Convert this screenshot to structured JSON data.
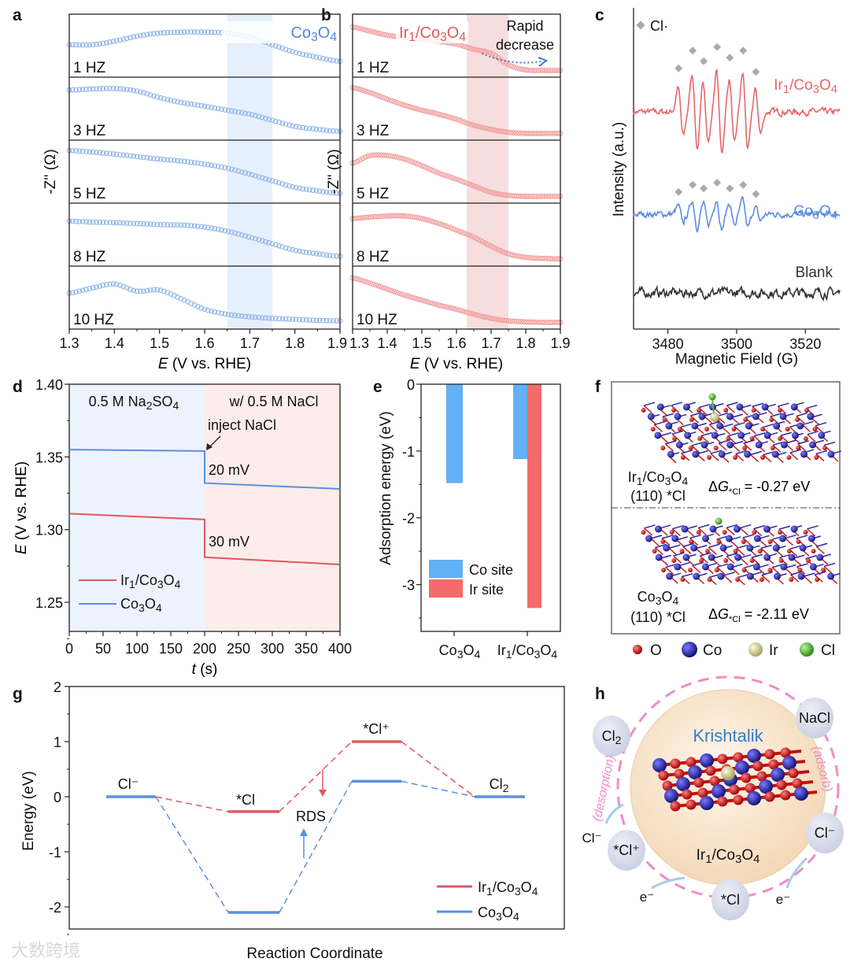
{
  "panel_labels": [
    "a",
    "b",
    "c",
    "d",
    "e",
    "f",
    "g",
    "h"
  ],
  "watermark": "大数跨境",
  "chart_data": [
    {
      "id": "a",
      "type": "line",
      "title": "Co3O4",
      "xlabel_italic": "E",
      "xlabel": "(V vs. RHE)",
      "ylabel": "-Z'' (Ω)",
      "xlim": [
        1.3,
        1.9
      ],
      "xticks": [
        "1.3",
        "1.4",
        "1.5",
        "1.6",
        "1.7",
        "1.8",
        "1.9"
      ],
      "highlight_range": [
        1.65,
        1.75
      ],
      "color": "#8fb4ea",
      "shade": "#e6f0fc",
      "x": [
        1.3,
        1.35,
        1.4,
        1.45,
        1.5,
        1.55,
        1.6,
        1.65,
        1.7,
        1.75,
        1.8,
        1.85,
        1.9
      ],
      "series": [
        {
          "name": "1 HZ",
          "values": [
            0.55,
            0.55,
            0.62,
            0.72,
            0.78,
            0.8,
            0.8,
            0.78,
            0.7,
            0.55,
            0.4,
            0.3,
            0.22
          ]
        },
        {
          "name": "3 HZ",
          "values": [
            0.9,
            0.92,
            0.93,
            0.88,
            0.75,
            0.65,
            0.58,
            0.5,
            0.42,
            0.3,
            0.18,
            0.12,
            0.08
          ]
        },
        {
          "name": "5 HZ",
          "values": [
            0.95,
            0.92,
            0.88,
            0.83,
            0.78,
            0.74,
            0.68,
            0.6,
            0.48,
            0.35,
            0.22,
            0.15,
            0.1
          ]
        },
        {
          "name": "8 HZ",
          "values": [
            0.8,
            0.78,
            0.77,
            0.75,
            0.73,
            0.72,
            0.68,
            0.6,
            0.48,
            0.35,
            0.22,
            0.15,
            0.1
          ]
        },
        {
          "name": "10 HZ",
          "values": [
            0.62,
            0.72,
            0.8,
            0.66,
            0.68,
            0.5,
            0.3,
            0.2,
            0.15,
            0.12,
            0.1,
            0.08,
            0.07
          ]
        }
      ]
    },
    {
      "id": "b",
      "type": "line",
      "title": "Ir1/Co3O4",
      "xlabel_italic": "E",
      "xlabel": "(V vs. RHE)",
      "ylabel": "-Z'' (Ω)",
      "xlim": [
        1.3,
        1.9
      ],
      "xticks": [
        "1.3",
        "1.4",
        "1.5",
        "1.6",
        "1.7",
        "1.8",
        "1.9"
      ],
      "highlight_range": [
        1.63,
        1.75
      ],
      "color": "#ef9a9a",
      "shade": "#f6dede",
      "annotation": [
        "Rapid",
        "decrease"
      ],
      "x": [
        1.3,
        1.35,
        1.4,
        1.45,
        1.5,
        1.55,
        1.6,
        1.65,
        1.7,
        1.75,
        1.8,
        1.85,
        1.9
      ],
      "series": [
        {
          "name": "1 HZ",
          "values": [
            0.9,
            0.82,
            0.74,
            0.69,
            0.66,
            0.62,
            0.56,
            0.46,
            0.38,
            0.15,
            0.05,
            0.04,
            0.04
          ]
        },
        {
          "name": "3 HZ",
          "values": [
            0.95,
            0.85,
            0.72,
            0.6,
            0.5,
            0.42,
            0.32,
            0.2,
            0.12,
            0.06,
            0.04,
            0.04,
            0.04
          ]
        },
        {
          "name": "5 HZ",
          "values": [
            0.7,
            0.85,
            0.85,
            0.78,
            0.65,
            0.5,
            0.38,
            0.25,
            0.12,
            0.06,
            0.04,
            0.04,
            0.04
          ]
        },
        {
          "name": "8 HZ",
          "values": [
            0.85,
            0.88,
            0.9,
            0.9,
            0.85,
            0.75,
            0.62,
            0.48,
            0.3,
            0.15,
            0.08,
            0.06,
            0.05
          ]
        },
        {
          "name": "10 HZ",
          "values": [
            0.92,
            0.82,
            0.7,
            0.58,
            0.48,
            0.38,
            0.3,
            0.2,
            0.12,
            0.07,
            0.05,
            0.04,
            0.04
          ]
        }
      ]
    },
    {
      "id": "c",
      "type": "line",
      "xlabel": "Magnetic Field (G)",
      "ylabel": "Intensity (a.u.)",
      "xlim": [
        3470,
        3530
      ],
      "xticks": [
        "3480",
        "3500",
        "3520"
      ],
      "legend": "Cl·",
      "peaks_G": [
        3483.7,
        3487.8,
        3491.0,
        3494.9,
        3498.6,
        3502.5,
        3506.2
      ],
      "series": [
        {
          "name": "Ir1/Co3O4",
          "color": "#e8676a",
          "rel_amplitudes": [
            45,
            70,
            55,
            75,
            60,
            70,
            40
          ]
        },
        {
          "name": "Co3O4",
          "color": "#5b8fe0",
          "rel_amplitudes": [
            15,
            25,
            20,
            28,
            20,
            25,
            12
          ]
        },
        {
          "name": "Blank",
          "color": "#333333",
          "rel_amplitudes": [
            0,
            0,
            0,
            0,
            0,
            0,
            0
          ]
        }
      ]
    },
    {
      "id": "d",
      "type": "line",
      "xlabel_italic": "t",
      "xlabel": "(s)",
      "ylabel_italic": "E",
      "ylabel": "(V vs. RHE)",
      "xlim": [
        0,
        400
      ],
      "ylim": [
        1.23,
        1.4
      ],
      "xticks": [
        "0",
        "50",
        "100",
        "150",
        "200",
        "250",
        "300",
        "350",
        "400"
      ],
      "yticks": [
        "1.25",
        "1.30",
        "1.35",
        "1.40"
      ],
      "regions": [
        "0.5 M Na2SO4",
        "w/ 0.5 M NaCl"
      ],
      "annotations": {
        "inject": "inject NaCl",
        "co_drop": "20 mV",
        "ir_drop": "30 mV"
      },
      "series": [
        {
          "name": "Ir1/Co3O4",
          "color": "#e0585f",
          "segments": [
            [
              [
                0,
                1.311
              ],
              [
                200,
                1.307
              ]
            ],
            [
              [
                200,
                1.281
              ],
              [
                400,
                1.276
              ]
            ]
          ]
        },
        {
          "name": "Co3O4",
          "color": "#5b8fe0",
          "segments": [
            [
              [
                0,
                1.355
              ],
              [
                200,
                1.354
              ]
            ],
            [
              [
                200,
                1.332
              ],
              [
                400,
                1.328
              ]
            ]
          ]
        }
      ]
    },
    {
      "id": "e",
      "type": "bar",
      "ylabel": "Adsorption energy (eV)",
      "ylim": [
        -3.7,
        0
      ],
      "yticks": [
        "0",
        "-1",
        "-2",
        "-3"
      ],
      "categories": [
        "Co3O4",
        "Ir1/Co3O4"
      ],
      "series": [
        {
          "name": "Co site",
          "color": "#62b0f5",
          "values": [
            -1.48,
            -1.12
          ]
        },
        {
          "name": "Ir site",
          "color": "#f56a6a",
          "values": [
            null,
            -3.35
          ]
        }
      ]
    },
    {
      "id": "g",
      "type": "line",
      "xlabel": "Reaction Coordinate",
      "ylabel": "Energy (eV)",
      "ylim": [
        -2.4,
        2
      ],
      "yticks": [
        "2",
        "1",
        "0",
        "-1",
        "-2"
      ],
      "states": [
        "Cl⁻",
        "*Cl",
        "*Cl⁺",
        "Cl2"
      ],
      "rds_label": "RDS",
      "series": [
        {
          "name": "Ir1/Co3O4",
          "color": "#e0585f",
          "values": [
            0,
            -0.27,
            1.0,
            0
          ]
        },
        {
          "name": "Co3O4",
          "color": "#5b8fe0",
          "values": [
            0,
            -2.1,
            0.28,
            0
          ]
        }
      ]
    }
  ],
  "panel_f": {
    "top": {
      "name": "Ir1/Co3O4",
      "facet": "(110) *Cl",
      "dg_symbol": "ΔG",
      "dg_sub": "*Cl",
      "dg_value": "= -0.27 eV"
    },
    "bottom": {
      "name": "Co3O4",
      "facet": "(110) *Cl",
      "dg_symbol": "ΔG",
      "dg_sub": "*Cl",
      "dg_value": "= -2.11 eV"
    },
    "legend": [
      {
        "label": "O",
        "color": "#d01818"
      },
      {
        "label": "Co",
        "color": "#2a2aa8"
      },
      {
        "label": "Ir",
        "color": "#d6d48a"
      },
      {
        "label": "Cl",
        "color": "#55c03a"
      }
    ]
  },
  "panel_h": {
    "title": "Krishtalik",
    "catalyst": "Ir1/Co3O4",
    "species": {
      "cl2": "Cl2",
      "nacl": "NaCl",
      "cl_right": "Cl⁻",
      "star_cl": "*Cl",
      "star_cl_plus": "*Cl⁺"
    },
    "cl_left": "Cl⁻",
    "electron": "e⁻",
    "desorption": "(desorption)",
    "adsorb": "(adsorb)"
  }
}
